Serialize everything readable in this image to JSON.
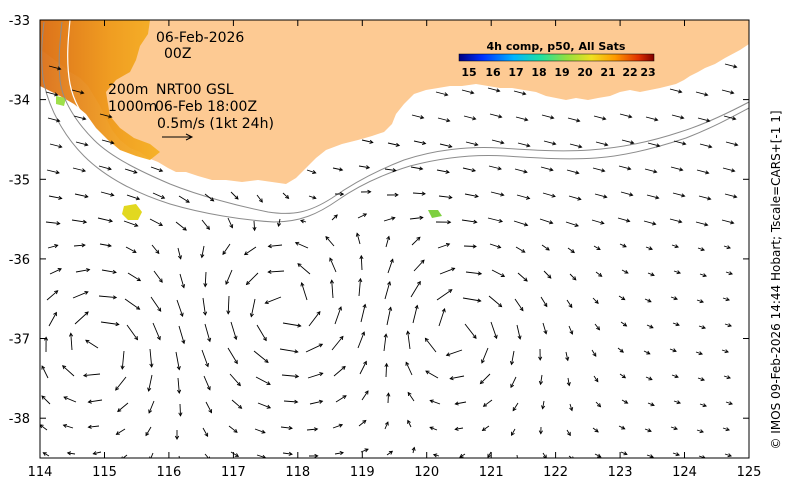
{
  "map": {
    "lon_range": [
      114,
      125
    ],
    "lat_range": [
      -38.5,
      -33
    ],
    "x_ticks": [
      "114",
      "115",
      "116",
      "117",
      "118",
      "119",
      "120",
      "121",
      "122",
      "123",
      "124",
      "125"
    ],
    "y_ticks": [
      "-33",
      "-34",
      "-35",
      "-36",
      "-37",
      "-38"
    ],
    "land_color": "#fdca93",
    "annotations": {
      "date": "06-Feb-2026",
      "time": "00Z",
      "depth_200": "200m",
      "depth_1000": "1000m",
      "product": "NRT00 GSL",
      "product_time": "06-Feb 18:00Z",
      "scale": "0.5m/s (1kt 24h)"
    },
    "colorbar": {
      "title": "4h comp, p50, All Sats",
      "labels": [
        "15",
        "16",
        "17",
        "18",
        "19",
        "20",
        "21",
        "22",
        "23"
      ]
    },
    "credit": "© IMOS 09-Feb-2026 14:44 Hobart; Tscale=CARS+[-1 1]"
  }
}
